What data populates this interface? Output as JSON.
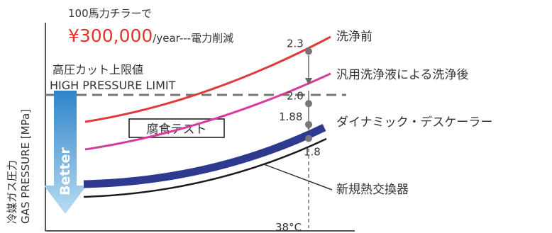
{
  "annotations": {
    "top_note": "100馬力チラーで",
    "savings_amount": "¥300,000",
    "savings_suffix": "/year---電力削減",
    "limit_label_jp": "高圧カット上限値",
    "limit_label_en": "HIGH PRESSURE LIMIT",
    "corrosion_test": "腐食テスト",
    "better": "Better",
    "temperature": "38°C"
  },
  "chart_data": {
    "type": "line",
    "ylabel_jp": "冷媒ガス圧力",
    "ylabel_en": "GAS PRESSURE [MPa]",
    "xlabel": "",
    "x_marker": "38°C",
    "limit_value": 2.05,
    "series": [
      {
        "name": "洗浄前",
        "value_at_marker": 2.3,
        "value_label": "2.3",
        "color": "#e03a3a"
      },
      {
        "name": "汎用洗浄液による洗浄後",
        "value_at_marker": 2.0,
        "value_label": "2.0",
        "color": "#d63c9c"
      },
      {
        "name": "ダイナミック・デスケーラー",
        "value_at_marker": 1.88,
        "value_label": "1.88",
        "color": "#2e3a8f"
      },
      {
        "name": "新規熱交換器",
        "value_at_marker": 1.8,
        "value_label": "1.8",
        "color": "#1a1a1a"
      }
    ]
  },
  "colors": {
    "savings": "#e8302a",
    "arrow_top": "#2f84c9",
    "arrow_bottom": "#b8dcf2",
    "marker": "#777777",
    "axis": "#555555"
  }
}
